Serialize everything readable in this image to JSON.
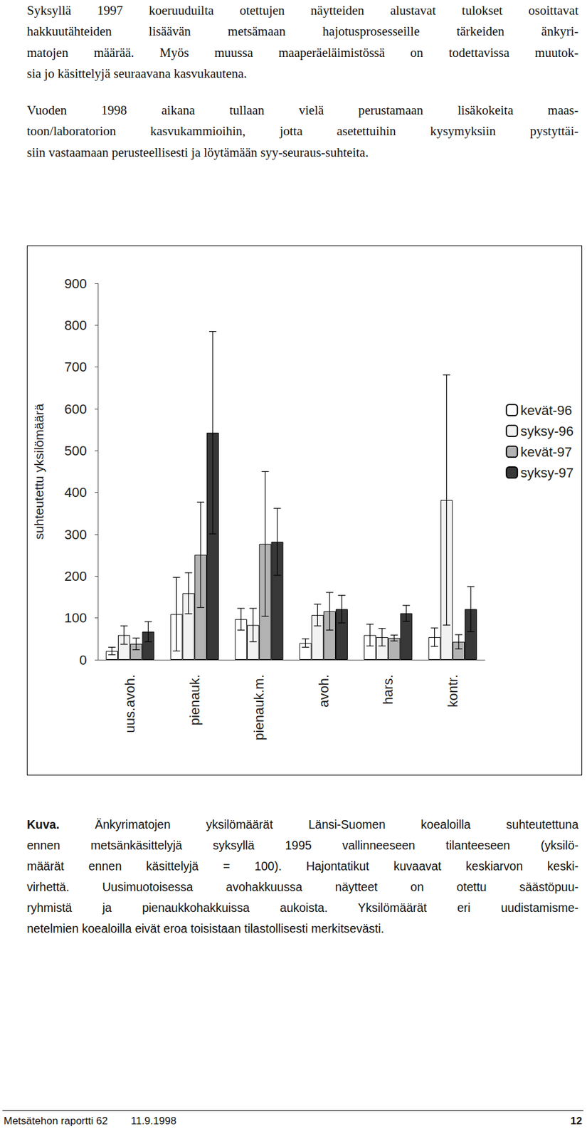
{
  "paragraphs": [
    [
      "Syksyllä 1997 koeruuduilta otettujen näytteiden alustavat tulokset osoittavat",
      "hakkuutähteiden lisäävän metsämaan hajotusprosesseille tärkeiden änkyri-",
      "matojen määrää. Myös muussa maaperäeläimistössä on todettavissa muutok-",
      "sia jo käsittelyjä seuraavana kasvukautena."
    ],
    [
      "Vuoden 1998 aikana tullaan vielä perustamaan lisäkokeita maas-",
      "toon/laboratorion kasvukammioihin, jotta asetettuihin kysymyksiin pystyttäi-",
      "siin vastaamaan perusteellisesti ja löytämään syy-seuraus-suhteita."
    ]
  ],
  "chart_data": {
    "type": "bar",
    "y_label": "suhteutettu yksilömäärä",
    "categories": [
      "uus.avoh.",
      "pienauk.",
      "pienauk.m.",
      "avoh.",
      "hars.",
      "kontr."
    ],
    "series": [
      {
        "name": "kevät-96",
        "color": "#ffffff",
        "values": [
          21,
          109,
          97,
          40,
          59,
          54
        ],
        "errors": [
          9,
          88,
          26,
          10,
          26,
          22
        ]
      },
      {
        "name": "syksy-96",
        "color": "#f2f2f2",
        "values": [
          59,
          159,
          83,
          107,
          54,
          382
        ],
        "errors": [
          22,
          49,
          40,
          26,
          21,
          299
        ]
      },
      {
        "name": "kevät-97",
        "color": "#b3b3b3",
        "values": [
          38,
          251,
          277,
          116,
          52,
          43
        ],
        "errors": [
          14,
          126,
          173,
          45,
          7,
          17
        ]
      },
      {
        "name": "syksy-97",
        "color": "#383838",
        "values": [
          67,
          543,
          282,
          121,
          111,
          121
        ],
        "errors": [
          24,
          242,
          80,
          33,
          19,
          54
        ]
      }
    ],
    "ylim": [
      0,
      900
    ],
    "yticks": [
      0,
      100,
      200,
      300,
      400,
      500,
      600,
      700,
      800,
      900
    ],
    "grid": false,
    "legend": "right"
  },
  "caption": {
    "label": "Kuva.",
    "lines": [
      "Änkyrimatojen yksilömäärät Länsi-Suomen koealoilla suhteutettuna",
      "ennen metsänkäsittelyjä syksyllä 1995 vallinneeseen tilanteeseen (yksilö-",
      "määrät ennen käsittelyjä = 100). Hajontatikut kuvaavat keskiarvon keski-",
      "virhettä. Uusimuotoisessa avohakkuussa näytteet on otettu säästöpuu-",
      "ryhmistä ja pienaukkohakkuissa aukoista. Yksilömäärät eri uudistamisme-",
      "netelmien koealoilla eivät eroa toisistaan tilastollisesti merkitsevästi."
    ]
  },
  "footer": {
    "report": "Metsätehon raportti 62",
    "date": "11.9.1998",
    "page": "12"
  }
}
